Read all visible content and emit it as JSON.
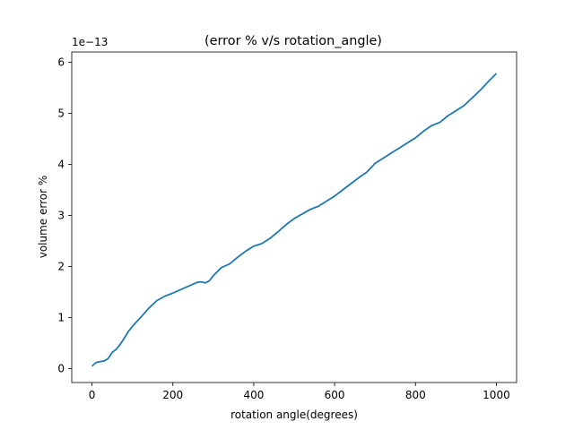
{
  "chart_data": {
    "type": "line",
    "title": "(error % v/s rotation_angle)",
    "xlabel": "rotation angle(degrees)",
    "ylabel": "volume error %",
    "y_offset_label": "1e−13",
    "xlim": [
      -50,
      1050
    ],
    "ylim": [
      -0.27,
      6.2
    ],
    "x_ticks": [
      0,
      200,
      400,
      600,
      800,
      1000
    ],
    "x_tick_labels": [
      "0",
      "200",
      "400",
      "600",
      "800",
      "1000"
    ],
    "y_ticks": [
      0,
      1,
      2,
      3,
      4,
      5,
      6
    ],
    "y_tick_labels": [
      "0",
      "1",
      "2",
      "3",
      "4",
      "5",
      "6"
    ],
    "grid": false,
    "series": [
      {
        "color": "#1f77b4",
        "x": [
          0,
          10,
          20,
          30,
          40,
          50,
          60,
          70,
          80,
          90,
          100,
          120,
          140,
          160,
          180,
          200,
          220,
          240,
          260,
          270,
          280,
          290,
          300,
          320,
          340,
          360,
          380,
          400,
          420,
          440,
          460,
          480,
          500,
          520,
          540,
          560,
          580,
          600,
          620,
          640,
          660,
          680,
          700,
          720,
          740,
          760,
          780,
          800,
          820,
          840,
          860,
          880,
          900,
          920,
          940,
          960,
          980,
          1000
        ],
        "y": [
          0.05,
          0.12,
          0.14,
          0.15,
          0.2,
          0.32,
          0.38,
          0.48,
          0.6,
          0.73,
          0.83,
          1.0,
          1.18,
          1.33,
          1.42,
          1.48,
          1.55,
          1.62,
          1.69,
          1.7,
          1.68,
          1.72,
          1.82,
          1.98,
          2.05,
          2.18,
          2.3,
          2.4,
          2.45,
          2.55,
          2.68,
          2.82,
          2.94,
          3.03,
          3.12,
          3.18,
          3.28,
          3.38,
          3.5,
          3.62,
          3.74,
          3.85,
          4.02,
          4.12,
          4.22,
          4.32,
          4.42,
          4.52,
          4.65,
          4.76,
          4.82,
          4.95,
          5.05,
          5.15,
          5.3,
          5.45,
          5.62,
          5.78
        ]
      }
    ]
  }
}
